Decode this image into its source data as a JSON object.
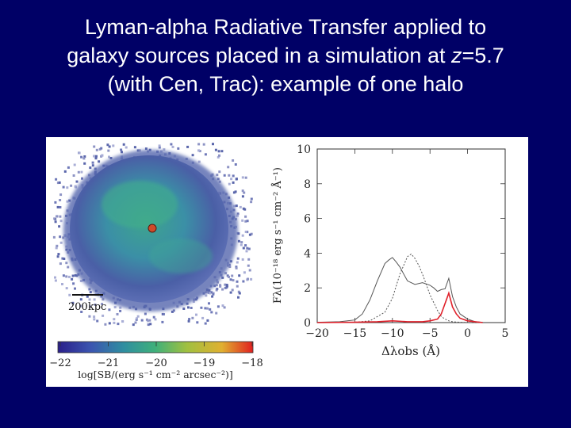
{
  "slide": {
    "title_lines": [
      "Lyman-alpha Radiative Transfer applied to",
      "galaxy sources placed in a simulation at ",
      "(with Cen, Trac): example of one halo"
    ],
    "title_italic": "z",
    "title_redshift": "=5.7"
  },
  "map_panel": {
    "scale_label": "200kpc",
    "colorbar": {
      "ticks": [
        "−22",
        "−21",
        "−20",
        "−19",
        "−18"
      ],
      "label": "log[SB/(erg s⁻¹ cm⁻² arcsec⁻²)]",
      "colors": [
        "#2a1f8a",
        "#3b55b0",
        "#2f8fa0",
        "#3fb07a",
        "#a0c040",
        "#e0b030",
        "#e02020"
      ]
    },
    "colors": {
      "halo_outer": "#4a5fa6",
      "halo_inner": "#3ea48e",
      "source_marker": "#d04a28"
    }
  },
  "chart_data": {
    "type": "line",
    "xlabel": "Δλobs (Å)",
    "ylabel": "Fλ(10⁻¹⁸ erg s⁻¹ cm⁻² Å⁻¹)",
    "xlim": [
      -20,
      5
    ],
    "ylim": [
      0,
      10
    ],
    "xticks": [
      -20,
      -15,
      -10,
      -5,
      0,
      5
    ],
    "yticks": [
      0,
      2,
      4,
      6,
      8,
      10
    ],
    "series": [
      {
        "style": "solid",
        "color": "#555555",
        "x": [
          -20,
          -17,
          -15,
          -14,
          -13,
          -12,
          -11,
          -10.5,
          -10,
          -9.5,
          -9,
          -8.5,
          -8,
          -7,
          -6,
          -5,
          -4.5,
          -4,
          -3.5,
          -3,
          -2.5,
          -2,
          -1.5,
          -1,
          0,
          1,
          2
        ],
        "y": [
          0.02,
          0.05,
          0.15,
          0.5,
          1.3,
          2.4,
          3.4,
          3.6,
          3.75,
          3.5,
          3.2,
          2.8,
          2.4,
          2.2,
          2.3,
          2.15,
          2.0,
          1.8,
          1.9,
          1.95,
          2.55,
          1.5,
          0.9,
          0.5,
          0.2,
          0.05,
          0.02
        ]
      },
      {
        "style": "dotted",
        "color": "#555555",
        "x": [
          -20,
          -15,
          -13,
          -11,
          -10,
          -9,
          -8,
          -7.5,
          -7,
          -6.5,
          -6,
          -5,
          -4,
          -3.5,
          -3,
          -2.5,
          -2,
          -1,
          0,
          2
        ],
        "y": [
          0,
          0.02,
          0.1,
          0.6,
          1.4,
          2.8,
          3.8,
          3.95,
          3.7,
          3.3,
          2.8,
          1.6,
          0.7,
          0.35,
          0.2,
          0.1,
          0.05,
          0.02,
          0.01,
          0
        ],
        "note_hidden": ""
      },
      {
        "style": "solid",
        "color": "#e0202a",
        "x": [
          -20,
          -15,
          -12,
          -10,
          -8,
          -6,
          -5,
          -4,
          -3.5,
          -3,
          -2.5,
          -2,
          -1.5,
          -1,
          0,
          1,
          2
        ],
        "y": [
          0,
          0.02,
          0.05,
          0.1,
          0.05,
          0.05,
          0.1,
          0.2,
          0.5,
          1.1,
          1.7,
          0.9,
          0.5,
          0.25,
          0.1,
          0.05,
          0
        ]
      }
    ]
  }
}
